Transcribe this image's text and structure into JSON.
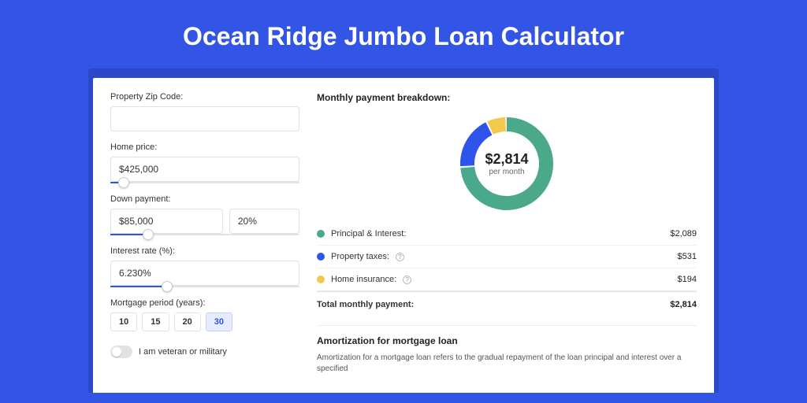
{
  "header": {
    "title": "Ocean Ridge Jumbo Loan Calculator"
  },
  "colors": {
    "page_bg": "#3355e6",
    "panel_bg": "#ffffff",
    "accent": "#2f54eb"
  },
  "form": {
    "zip": {
      "label": "Property Zip Code:",
      "value": ""
    },
    "price": {
      "label": "Home price:",
      "value": "$425,000",
      "slider_percent": 7
    },
    "down": {
      "label": "Down payment:",
      "amount": "$85,000",
      "percent": "20%",
      "slider_percent": 20
    },
    "rate": {
      "label": "Interest rate (%):",
      "value": "6.230%",
      "slider_percent": 30
    },
    "period": {
      "label": "Mortgage period (years):",
      "options": [
        "10",
        "15",
        "20",
        "30"
      ],
      "active": "30"
    },
    "veteran": {
      "label": "I am veteran or military",
      "on": false
    }
  },
  "breakdown": {
    "title": "Monthly payment breakdown:",
    "donut": {
      "value": "$2,814",
      "sub": "per month",
      "slices": [
        {
          "color": "#4aa98a",
          "percent": 74
        },
        {
          "color": "#2f54eb",
          "percent": 19
        },
        {
          "color": "#f2c94c",
          "percent": 7
        }
      ],
      "stroke_width": 18
    },
    "items": [
      {
        "name": "Principal & Interest:",
        "amount": "$2,089",
        "color": "#4aa98a",
        "info": false
      },
      {
        "name": "Property taxes:",
        "amount": "$531",
        "color": "#2f54eb",
        "info": true
      },
      {
        "name": "Home insurance:",
        "amount": "$194",
        "color": "#f2c94c",
        "info": true
      }
    ],
    "total": {
      "name": "Total monthly payment:",
      "amount": "$2,814"
    }
  },
  "amortization": {
    "title": "Amortization for mortgage loan",
    "text": "Amortization for a mortgage loan refers to the gradual repayment of the loan principal and interest over a specified"
  }
}
